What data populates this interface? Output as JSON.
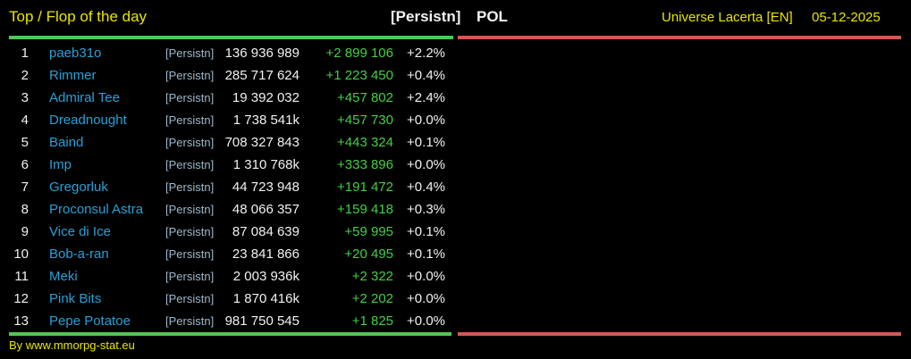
{
  "title": "Top / Flop of the day",
  "header": {
    "tag": "[Persistn]",
    "country": "POL",
    "universe": "Universe Lacerta [EN]",
    "date": "05-12-2025"
  },
  "footer": {
    "credit": "By www.mmorpg-stat.eu"
  },
  "colors": {
    "background": "#000000",
    "accent_yellow": "#e6e600",
    "text_white": "#f2f2f2",
    "name_blue": "#2a9fd6",
    "tag_blue": "#9db7ca",
    "gain_green": "#44cf44",
    "line_green": "#55c555",
    "line_red": "#cd5a55"
  },
  "table": {
    "rows": [
      {
        "rank": "1",
        "name": "paeb31o",
        "tag": "[Persistn]",
        "value": "136 936 989",
        "change": "+2 899 106",
        "percent": "+2.2%"
      },
      {
        "rank": "2",
        "name": "Rimmer",
        "tag": "[Persistn]",
        "value": "285 717 624",
        "change": "+1 223 450",
        "percent": "+0.4%"
      },
      {
        "rank": "3",
        "name": "Admiral Tee",
        "tag": "[Persistn]",
        "value": "19 392 032",
        "change": "+457 802",
        "percent": "+2.4%"
      },
      {
        "rank": "4",
        "name": "Dreadnought",
        "tag": "[Persistn]",
        "value": "1 738 541k",
        "change": "+457 730",
        "percent": "+0.0%"
      },
      {
        "rank": "5",
        "name": "Baind",
        "tag": "[Persistn]",
        "value": "708 327 843",
        "change": "+443 324",
        "percent": "+0.1%"
      },
      {
        "rank": "6",
        "name": "Imp",
        "tag": "[Persistn]",
        "value": "1 310 768k",
        "change": "+333 896",
        "percent": "+0.0%"
      },
      {
        "rank": "7",
        "name": "Gregorluk",
        "tag": "[Persistn]",
        "value": "44 723 948",
        "change": "+191 472",
        "percent": "+0.4%"
      },
      {
        "rank": "8",
        "name": "Proconsul Astra",
        "tag": "[Persistn]",
        "value": "48 066 357",
        "change": "+159 418",
        "percent": "+0.3%"
      },
      {
        "rank": "9",
        "name": "Vice di Ice",
        "tag": "[Persistn]",
        "value": "87 084 639",
        "change": "+59 995",
        "percent": "+0.1%"
      },
      {
        "rank": "10",
        "name": "Bob-a-ran",
        "tag": "[Persistn]",
        "value": "23 841 866",
        "change": "+20 495",
        "percent": "+0.1%"
      },
      {
        "rank": "11",
        "name": "Meki",
        "tag": "[Persistn]",
        "value": "2 003 936k",
        "change": "+2 322",
        "percent": "+0.0%"
      },
      {
        "rank": "12",
        "name": "Pink Bits",
        "tag": "[Persistn]",
        "value": "1 870 416k",
        "change": "+2 202",
        "percent": "+0.0%"
      },
      {
        "rank": "13",
        "name": "Pepe Potatoe",
        "tag": "[Persistn]",
        "value": "981 750 545",
        "change": "+1 825",
        "percent": "+0.0%"
      }
    ]
  }
}
